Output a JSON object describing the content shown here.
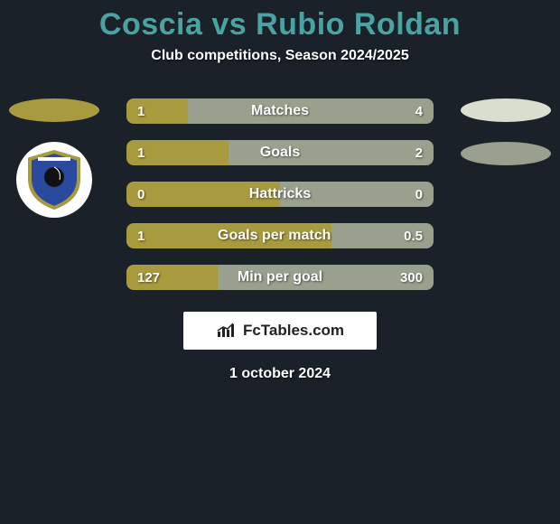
{
  "background_color": "#1a2129",
  "title": {
    "text": "Coscia vs Rubio Roldan",
    "color": "#4aa3a3",
    "fontsize": 34,
    "fontweight": 800
  },
  "subtitle": {
    "text": "Club competitions, Season 2024/2025",
    "color": "#ffffff",
    "fontsize": 16,
    "fontweight": 700
  },
  "players": {
    "left": {
      "name": "Coscia",
      "ellipse_color": "#a89a3e",
      "club_badge": {
        "bg": "#ffffff",
        "shield_fill": "#2a4aa0",
        "shield_stroke": "#a89a3e",
        "stripe_color": "#ffffff",
        "head_color": "#111111"
      }
    },
    "right": {
      "name": "Rubio Roldan",
      "ellipse1_color": "#d9decf",
      "ellipse2_color": "#9aa08e"
    }
  },
  "bars": {
    "height": 28,
    "gap": 18,
    "border_radius": 8,
    "label_fontsize": 16,
    "value_fontsize": 15,
    "text_color": "#ffffff",
    "left_color": "#a89a3e",
    "right_color": "#9aa08e",
    "rows": [
      {
        "label": "Matches",
        "left_val": "1",
        "right_val": "4",
        "left_pct": 20.0,
        "right_pct": 80.0
      },
      {
        "label": "Goals",
        "left_val": "1",
        "right_val": "2",
        "left_pct": 33.3,
        "right_pct": 66.7
      },
      {
        "label": "Hattricks",
        "left_val": "0",
        "right_val": "0",
        "left_pct": 50.0,
        "right_pct": 50.0
      },
      {
        "label": "Goals per match",
        "left_val": "1",
        "right_val": "0.5",
        "left_pct": 66.7,
        "right_pct": 33.3
      },
      {
        "label": "Min per goal",
        "left_val": "127",
        "right_val": "300",
        "left_pct": 29.7,
        "right_pct": 70.3
      }
    ]
  },
  "brand": {
    "text": "FcTables.com",
    "bg": "#ffffff",
    "text_color": "#222222",
    "fontsize": 17,
    "icon_color": "#222222"
  },
  "date": {
    "text": "1 october 2024",
    "color": "#ffffff",
    "fontsize": 16,
    "fontweight": 700
  }
}
